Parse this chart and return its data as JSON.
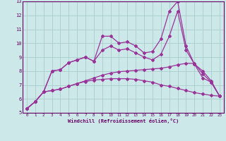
{
  "xlabel": "Windchill (Refroidissement éolien,°C)",
  "background_color": "#cce8e8",
  "grid_color": "#aacccc",
  "line_color": "#993399",
  "xlim": [
    -0.5,
    23.5
  ],
  "ylim": [
    5,
    13
  ],
  "yticks": [
    5,
    6,
    7,
    8,
    9,
    10,
    11,
    12,
    13
  ],
  "xticks": [
    0,
    1,
    2,
    3,
    4,
    5,
    6,
    7,
    8,
    9,
    10,
    11,
    12,
    13,
    14,
    15,
    16,
    17,
    18,
    19,
    20,
    21,
    22,
    23
  ],
  "series1_x": [
    0,
    1,
    2,
    3,
    4,
    5,
    6,
    7,
    8,
    9,
    10,
    11,
    12,
    13,
    14,
    15,
    16,
    17,
    18,
    19,
    20,
    21,
    22,
    23
  ],
  "series1_y": [
    5.3,
    5.8,
    6.5,
    8.0,
    8.1,
    8.6,
    8.8,
    9.0,
    8.7,
    10.5,
    10.5,
    10.0,
    10.1,
    9.8,
    9.3,
    9.4,
    10.3,
    12.3,
    13.0,
    9.8,
    8.5,
    8.0,
    7.3,
    6.2
  ],
  "series2_x": [
    0,
    1,
    2,
    3,
    4,
    5,
    6,
    7,
    8,
    9,
    10,
    11,
    12,
    13,
    14,
    15,
    16,
    17,
    18,
    19,
    20,
    21,
    22,
    23
  ],
  "series2_y": [
    5.3,
    5.8,
    6.5,
    6.6,
    6.7,
    6.9,
    7.1,
    7.25,
    7.35,
    7.4,
    7.45,
    7.45,
    7.45,
    7.4,
    7.3,
    7.2,
    7.0,
    6.9,
    6.75,
    6.6,
    6.45,
    6.35,
    6.25,
    6.2
  ],
  "series3_x": [
    0,
    1,
    2,
    3,
    4,
    5,
    6,
    7,
    8,
    9,
    10,
    11,
    12,
    13,
    14,
    15,
    16,
    17,
    18,
    19,
    20,
    21,
    22,
    23
  ],
  "series3_y": [
    5.3,
    5.8,
    6.5,
    6.6,
    6.7,
    6.9,
    7.1,
    7.3,
    7.5,
    7.7,
    7.85,
    7.95,
    8.0,
    8.05,
    8.1,
    8.15,
    8.2,
    8.3,
    8.45,
    8.55,
    8.55,
    7.8,
    7.2,
    6.2
  ],
  "series4_x": [
    0,
    1,
    2,
    3,
    4,
    5,
    6,
    7,
    8,
    9,
    10,
    11,
    12,
    13,
    14,
    15,
    16,
    17,
    18,
    19,
    20,
    21,
    22,
    23
  ],
  "series4_y": [
    5.3,
    5.8,
    6.5,
    8.0,
    8.1,
    8.6,
    8.8,
    9.0,
    8.7,
    9.5,
    9.8,
    9.5,
    9.6,
    9.3,
    9.0,
    8.8,
    9.2,
    10.5,
    12.3,
    9.5,
    8.5,
    7.5,
    7.2,
    6.2
  ]
}
